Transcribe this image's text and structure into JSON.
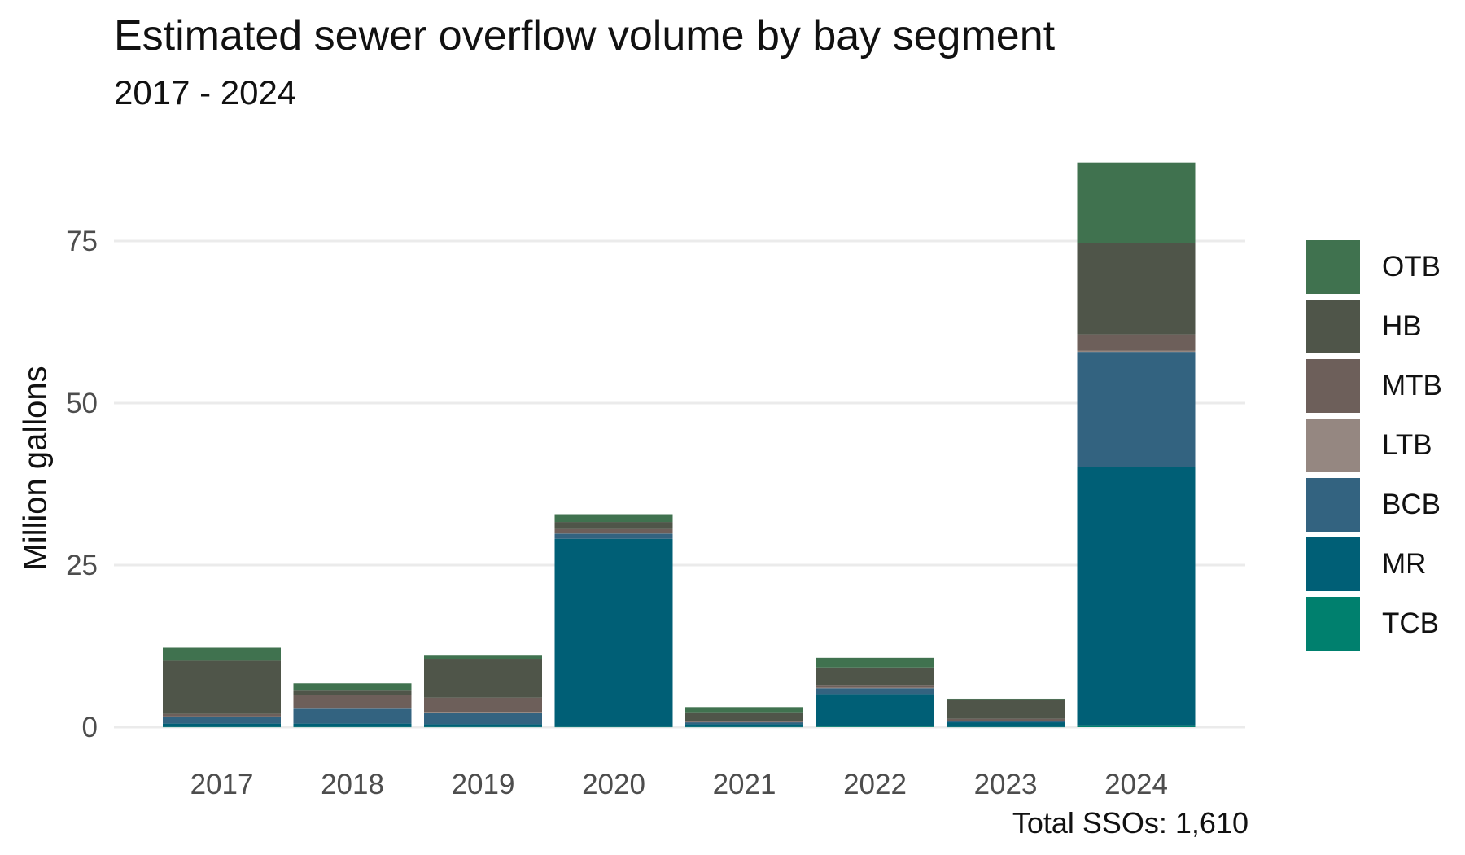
{
  "chart_data": {
    "type": "bar",
    "stacked": true,
    "title": "Estimated sewer overflow volume by bay segment",
    "subtitle": "2017 - 2024",
    "ylabel": "Million gallons",
    "xlabel": "",
    "caption": "Total SSOs: 1,610",
    "ylim": [
      0,
      88
    ],
    "yticks": [
      0,
      25,
      50,
      75
    ],
    "grid": "horizontal major",
    "legend_position": "right",
    "categories": [
      "2017",
      "2018",
      "2019",
      "2020",
      "2021",
      "2022",
      "2023",
      "2024"
    ],
    "series": [
      {
        "name": "TCB",
        "color": "#00806E",
        "values": [
          0.05,
          0.05,
          0.05,
          0.05,
          0.05,
          0.1,
          0.05,
          0.3
        ]
      },
      {
        "name": "MR",
        "color": "#005F76",
        "values": [
          0.5,
          0.5,
          0.4,
          29.0,
          0.4,
          5.0,
          0.7,
          39.8
        ]
      },
      {
        "name": "BCB",
        "color": "#336380",
        "values": [
          1.0,
          2.3,
          1.8,
          0.8,
          0.3,
          0.9,
          0.2,
          17.8
        ]
      },
      {
        "name": "LTB",
        "color": "#958781",
        "values": [
          0.1,
          0.1,
          0.1,
          0.1,
          0.05,
          0.1,
          0.05,
          0.2
        ]
      },
      {
        "name": "MTB",
        "color": "#6D5F5A",
        "values": [
          0.4,
          2.0,
          2.2,
          0.6,
          0.2,
          0.4,
          0.3,
          2.5
        ]
      },
      {
        "name": "HB",
        "color": "#4F5549",
        "values": [
          8.2,
          0.8,
          6.0,
          1.1,
          1.3,
          2.7,
          2.9,
          14.1
        ]
      },
      {
        "name": "OTB",
        "color": "#40724F",
        "values": [
          2.0,
          1.0,
          0.6,
          1.2,
          0.8,
          1.5,
          0.2,
          12.4
        ]
      }
    ]
  }
}
